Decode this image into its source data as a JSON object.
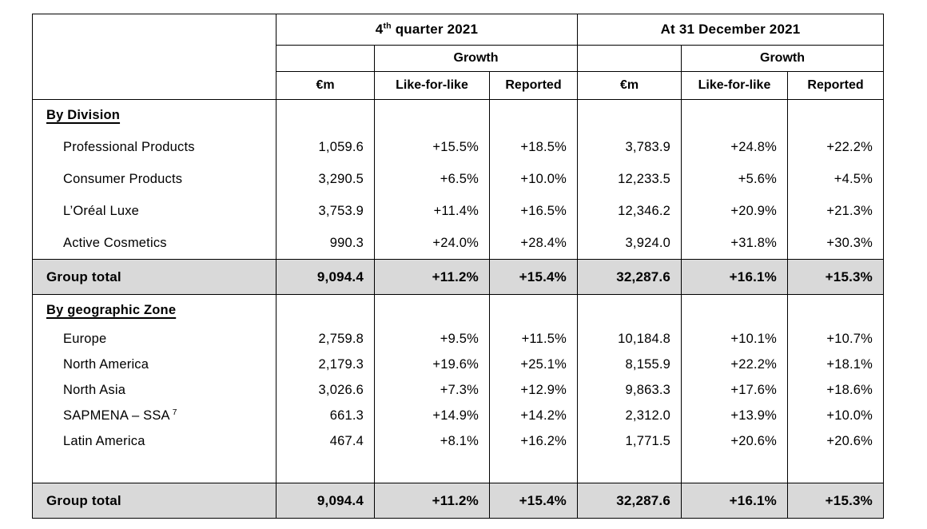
{
  "header": {
    "q4": {
      "prefix": "4",
      "sup": "th",
      "rest": " quarter 2021"
    },
    "dec": "At 31 December 2021",
    "growth": "Growth",
    "em": "€m",
    "lfl": "Like-for-like",
    "reported": "Reported"
  },
  "sections": [
    {
      "title": "By Division",
      "rows": [
        {
          "label": "Professional Products",
          "values": [
            "1,059.6",
            "+15.5%",
            "+18.5%",
            "3,783.9",
            "+24.8%",
            "+22.2%"
          ]
        },
        {
          "label": "Consumer Products",
          "values": [
            "3,290.5",
            "+6.5%",
            "+10.0%",
            "12,233.5",
            "+5.6%",
            "+4.5%"
          ]
        },
        {
          "label": "L’Oréal Luxe",
          "values": [
            "3,753.9",
            "+11.4%",
            "+16.5%",
            "12,346.2",
            "+20.9%",
            "+21.3%"
          ]
        },
        {
          "label": "Active Cosmetics",
          "values": [
            "990.3",
            "+24.0%",
            "+28.4%",
            "3,924.0",
            "+31.8%",
            "+30.3%"
          ]
        }
      ],
      "spacer_before_total": false,
      "total": {
        "label": "Group total",
        "values": [
          "9,094.4",
          "+11.2%",
          "+15.4%",
          "32,287.6",
          "+16.1%",
          "+15.3%"
        ]
      }
    },
    {
      "title": "By geographic Zone",
      "rows": [
        {
          "label": "Europe",
          "values": [
            "2,759.8",
            "+9.5%",
            "+11.5%",
            "10,184.8",
            "+10.1%",
            "+10.7%"
          ]
        },
        {
          "label": "North America",
          "values": [
            "2,179.3",
            "+19.6%",
            "+25.1%",
            "8,155.9",
            "+22.2%",
            "+18.1%"
          ]
        },
        {
          "label": "North Asia",
          "values": [
            "3,026.6",
            "+7.3%",
            "+12.9%",
            "9,863.3",
            "+17.6%",
            "+18.6%"
          ]
        },
        {
          "label": "SAPMENA – SSA",
          "footnote": "7",
          "values": [
            "661.3",
            "+14.9%",
            "+14.2%",
            "2,312.0",
            "+13.9%",
            "+10.0%"
          ]
        },
        {
          "label": "Latin America",
          "values": [
            "467.4",
            "+8.1%",
            "+16.2%",
            "1,771.5",
            "+20.6%",
            "+20.6%"
          ]
        }
      ],
      "spacer_before_total": true,
      "total": {
        "label": "Group total",
        "values": [
          "9,094.4",
          "+11.2%",
          "+15.4%",
          "32,287.6",
          "+16.1%",
          "+15.3%"
        ]
      }
    }
  ],
  "colors": {
    "total_row_bg": "#d9d9d9",
    "border": "#000000",
    "text": "#000000"
  }
}
